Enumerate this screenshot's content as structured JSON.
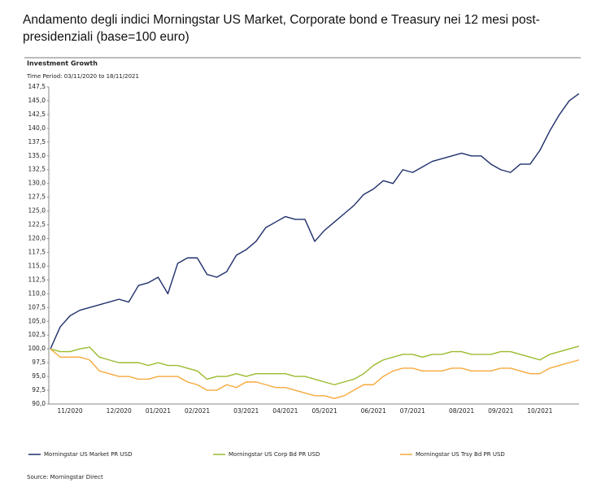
{
  "chart_data": {
    "type": "line",
    "title": "Andamento degli indici Morningstar US Market, Corporate bond e Treasury nei 12 mesi post-presidenziali (base=100 euro)",
    "subtitle": "Investment Growth",
    "time_period": "Time Period: 03/11/2020 to 18/11/2021",
    "source": "Source: Morningstar Direct",
    "categories": [
      null,
      null,
      "11/2020",
      null,
      null,
      null,
      null,
      "12/2020",
      null,
      null,
      null,
      "01/2021",
      null,
      null,
      null,
      "02/2021",
      null,
      null,
      null,
      null,
      "03/2021",
      null,
      null,
      null,
      "04/2021",
      null,
      null,
      null,
      "05/2021",
      null,
      null,
      null,
      null,
      "06/2021",
      null,
      null,
      null,
      "07/2021",
      null,
      null,
      null,
      null,
      "08/2021",
      null,
      null,
      null,
      "09/2021",
      null,
      null,
      null,
      "10/2021",
      null,
      null,
      null,
      null
    ],
    "series": [
      {
        "name": "Morningstar US Market PR USD",
        "color": "#1f2f6b",
        "values": [
          100,
          104,
          106,
          107,
          107.5,
          108,
          108.5,
          109,
          108.5,
          111.5,
          112,
          113,
          110,
          115.5,
          116.5,
          116.5,
          113.5,
          113,
          114,
          117,
          118,
          119.5,
          122,
          123,
          124,
          123.5,
          123.5,
          119.5,
          121.5,
          123,
          124.5,
          126,
          128,
          129,
          130.5,
          130,
          132.5,
          132,
          133,
          134,
          134.5,
          135,
          135.5,
          135,
          135,
          133.5,
          132.5,
          132,
          133.5,
          133.5,
          136,
          139.5,
          142.5,
          145,
          146.3
        ]
      },
      {
        "name": "Morningstar US Corp Bd PR USD",
        "color": "#9bbb2e",
        "values": [
          100,
          99.5,
          99.5,
          100,
          100.3,
          98.5,
          98,
          97.5,
          97.5,
          97.5,
          97,
          97.5,
          97,
          97,
          96.5,
          96,
          94.5,
          95,
          95,
          95.5,
          95,
          95.5,
          95.5,
          95.5,
          95.5,
          95,
          95,
          94.5,
          94,
          93.5,
          94,
          94.5,
          95.5,
          97,
          98,
          98.5,
          99,
          99,
          98.5,
          99,
          99,
          99.5,
          99.5,
          99,
          99,
          99,
          99.5,
          99.5,
          99,
          98.5,
          98,
          99,
          99.5,
          100,
          100.5
        ]
      },
      {
        "name": "Morningstar US Trsy Bd PR USD",
        "color": "#f5a93b",
        "values": [
          100,
          98.5,
          98.5,
          98.5,
          98,
          96,
          95.5,
          95,
          95,
          94.5,
          94.5,
          95,
          95,
          95,
          94,
          93.5,
          92.5,
          92.5,
          93.5,
          93,
          94,
          94,
          93.5,
          93,
          93,
          92.5,
          92,
          91.5,
          91.5,
          91,
          91.5,
          92.5,
          93.5,
          93.5,
          95,
          96,
          96.5,
          96.5,
          96,
          96,
          96,
          96.5,
          96.5,
          96,
          96,
          96,
          96.5,
          96.5,
          96,
          95.5,
          95.5,
          96.5,
          97,
          97.5,
          98
        ]
      }
    ],
    "ylim": [
      90,
      147.5
    ],
    "yticks": [
      {
        "value": 90,
        "label": "90,0"
      },
      {
        "value": 92.5,
        "label": "92,5"
      },
      {
        "value": 95,
        "label": "95,0"
      },
      {
        "value": 97.5,
        "label": "97,5"
      },
      {
        "value": 100,
        "label": "100,0"
      },
      {
        "value": 102.5,
        "label": "102,5"
      },
      {
        "value": 105,
        "label": "105,0"
      },
      {
        "value": 107.5,
        "label": "107,5"
      },
      {
        "value": 110,
        "label": "110,0"
      },
      {
        "value": 112.5,
        "label": "112,5"
      },
      {
        "value": 115,
        "label": "115,0"
      },
      {
        "value": 117.5,
        "label": "117,5"
      },
      {
        "value": 120,
        "label": "120,0"
      },
      {
        "value": 122.5,
        "label": "122,5"
      },
      {
        "value": 125,
        "label": "125,0"
      },
      {
        "value": 127.5,
        "label": "127,5"
      },
      {
        "value": 130,
        "label": "130,0"
      },
      {
        "value": 132.5,
        "label": "132,5"
      },
      {
        "value": 135,
        "label": "135,0"
      },
      {
        "value": 137.5,
        "label": "137,5"
      },
      {
        "value": 140,
        "label": "140,0"
      },
      {
        "value": 142.5,
        "label": "142,5"
      },
      {
        "value": 145,
        "label": "145,0"
      },
      {
        "value": 147.5,
        "label": "147,5"
      }
    ],
    "grid": false,
    "legend": "bottom"
  }
}
